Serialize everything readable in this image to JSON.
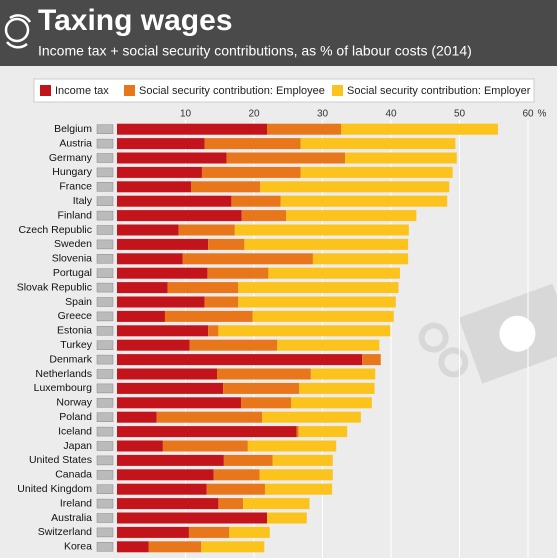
{
  "chart_data": {
    "type": "stacked-bar-horizontal",
    "title": "Taxing wages",
    "subtitle": "Income tax + social security contributions, as % of labour costs (2014)",
    "x_unit": "%",
    "categories": [
      "Belgium",
      "Austria",
      "Germany",
      "Hungary",
      "France",
      "Italy",
      "Finland",
      "Czech Republic",
      "Sweden",
      "Slovenia",
      "Portugal",
      "Slovak Republic",
      "Spain",
      "Greece",
      "Estonia",
      "Turkey",
      "Denmark",
      "Netherlands",
      "Luxembourg",
      "Norway",
      "Poland",
      "Iceland",
      "Japan",
      "United States",
      "Canada",
      "United Kingdom",
      "Ireland",
      "Australia",
      "Switzerland",
      "Korea"
    ],
    "series": [
      {
        "name": "Income tax",
        "color": "#c3141c",
        "values": [
          21.9,
          12.8,
          16.0,
          12.4,
          10.8,
          16.7,
          18.2,
          9.0,
          13.3,
          9.6,
          13.2,
          7.4,
          12.8,
          7.0,
          13.3,
          10.6,
          35.8,
          14.6,
          15.5,
          18.1,
          5.8,
          26.2,
          6.7,
          15.6,
          14.1,
          13.1,
          14.8,
          21.9,
          10.5,
          4.6
        ]
      },
      {
        "name": "Social security contribution: Employee",
        "color": "#e8761b",
        "values": [
          10.8,
          14.0,
          17.3,
          14.4,
          10.1,
          7.2,
          6.5,
          8.2,
          5.3,
          19.0,
          8.9,
          10.3,
          4.9,
          12.8,
          1.5,
          12.8,
          2.7,
          13.7,
          11.1,
          7.3,
          15.4,
          0.3,
          12.4,
          7.1,
          6.7,
          8.5,
          3.6,
          0,
          5.9,
          7.7
        ]
      },
      {
        "name": "Social security contribution: Employer",
        "color": "#fbc31c",
        "values": [
          22.9,
          22.6,
          16.3,
          22.2,
          27.6,
          24.3,
          19.0,
          25.4,
          23.9,
          13.9,
          19.2,
          23.4,
          23.0,
          20.6,
          25.1,
          14.9,
          0,
          9.4,
          11.0,
          11.8,
          14.4,
          7.1,
          12.9,
          8.8,
          10.7,
          9.8,
          9.7,
          5.8,
          5.9,
          9.2
        ]
      }
    ],
    "xlim": [
      0,
      60
    ],
    "xticks": [
      10,
      20,
      30,
      40,
      50,
      60
    ],
    "grid": true
  }
}
